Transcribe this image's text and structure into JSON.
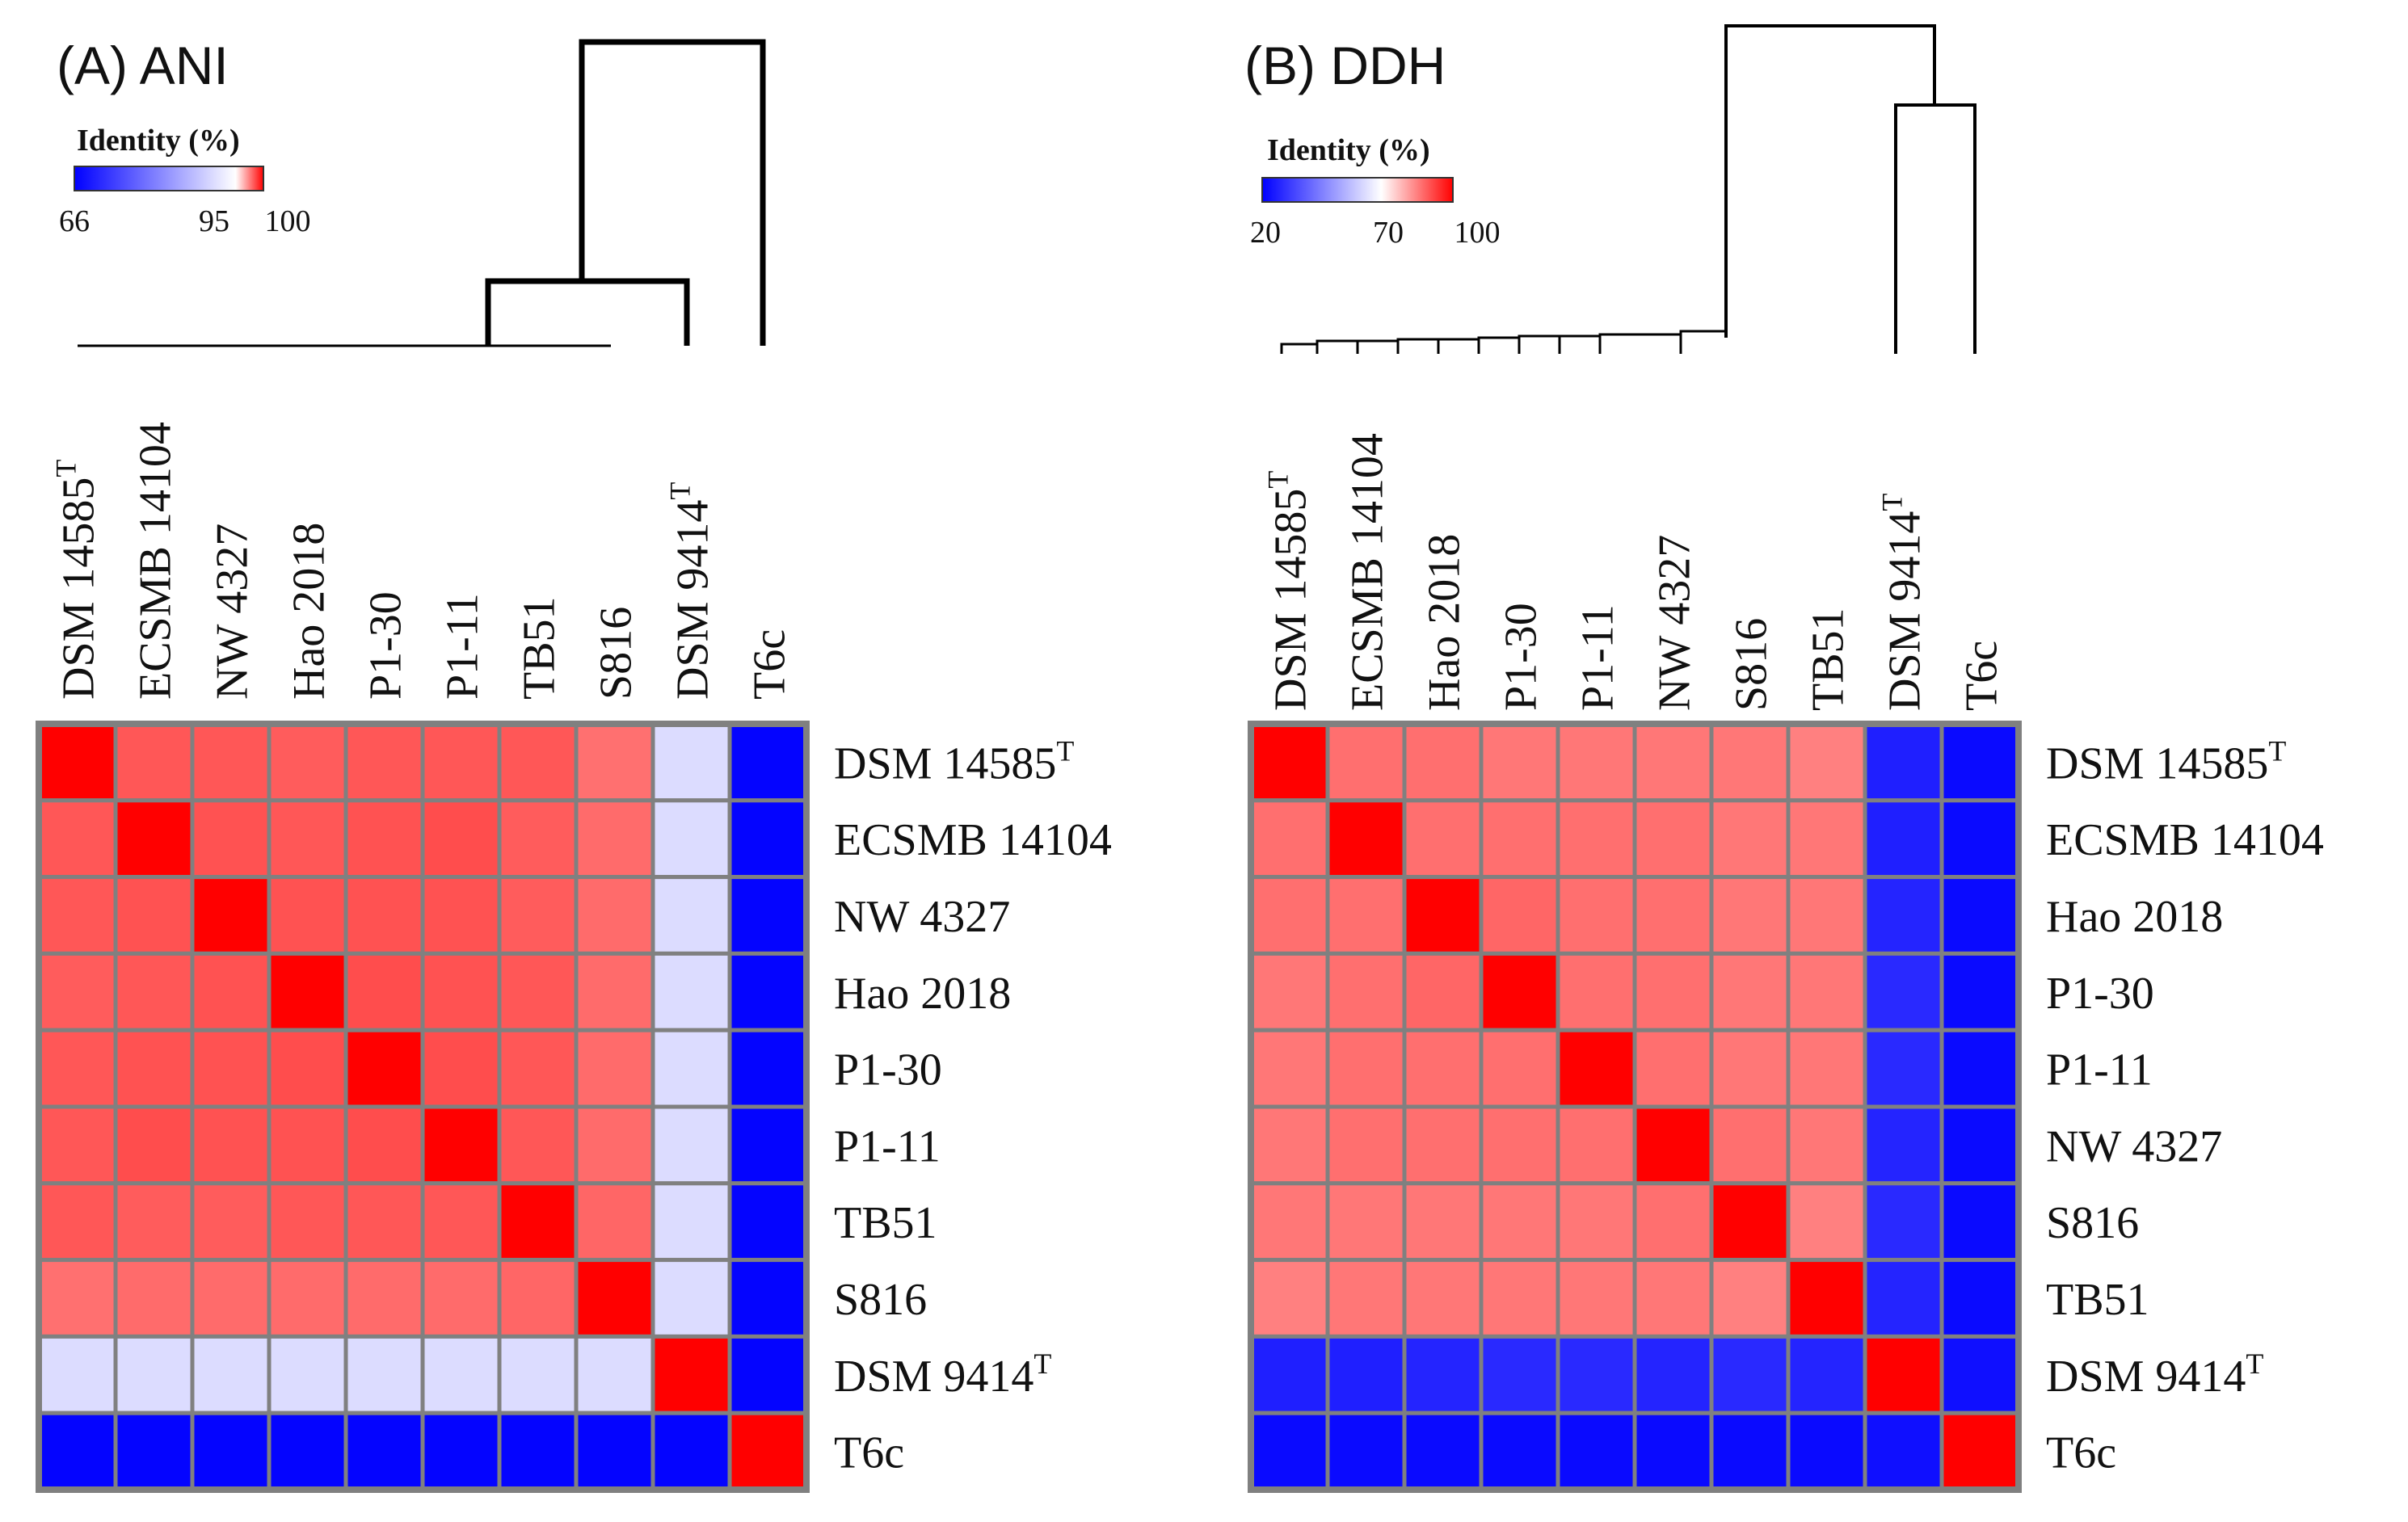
{
  "chart_data": [
    {
      "type": "heatmap",
      "title": "(A) ANI",
      "legend": {
        "title": "Identity (%)",
        "min": 66,
        "mid": 95,
        "max": 100,
        "tick_labels": [
          "66",
          "95",
          "100"
        ],
        "colors": [
          "#0000ff",
          "#ffffff",
          "#ff0000"
        ]
      },
      "columns": [
        {
          "name": "DSM 14585",
          "sup": "T"
        },
        {
          "name": "ECSMB 14104",
          "sup": ""
        },
        {
          "name": "NW 4327",
          "sup": ""
        },
        {
          "name": "Hao 2018",
          "sup": ""
        },
        {
          "name": "P1-30",
          "sup": ""
        },
        {
          "name": "P1-11",
          "sup": ""
        },
        {
          "name": "TB51",
          "sup": ""
        },
        {
          "name": "S816",
          "sup": ""
        },
        {
          "name": "DSM 9414",
          "sup": "T"
        },
        {
          "name": "T6c",
          "sup": ""
        }
      ],
      "rows": [
        {
          "name": "DSM 14585",
          "sup": "T"
        },
        {
          "name": "ECSMB 14104",
          "sup": ""
        },
        {
          "name": "NW 4327",
          "sup": ""
        },
        {
          "name": "Hao 2018",
          "sup": ""
        },
        {
          "name": "P1-30",
          "sup": ""
        },
        {
          "name": "P1-11",
          "sup": ""
        },
        {
          "name": "TB51",
          "sup": ""
        },
        {
          "name": "S816",
          "sup": ""
        },
        {
          "name": "DSM 9414",
          "sup": "T"
        },
        {
          "name": "T6c",
          "sup": ""
        }
      ],
      "values": [
        [
          100,
          98.3,
          98.3,
          98.2,
          98.3,
          98.3,
          98.3,
          97.8,
          91.0,
          66.5
        ],
        [
          98.3,
          100,
          98.4,
          98.3,
          98.4,
          98.5,
          98.2,
          97.9,
          91.0,
          66.5
        ],
        [
          98.3,
          98.4,
          100,
          98.4,
          98.4,
          98.4,
          98.2,
          97.9,
          91.0,
          66.5
        ],
        [
          98.2,
          98.3,
          98.4,
          100,
          98.5,
          98.4,
          98.3,
          97.9,
          91.0,
          66.5
        ],
        [
          98.3,
          98.4,
          98.4,
          98.5,
          100,
          98.5,
          98.3,
          97.9,
          91.0,
          66.5
        ],
        [
          98.3,
          98.5,
          98.4,
          98.4,
          98.5,
          100,
          98.3,
          97.9,
          91.0,
          66.5
        ],
        [
          98.3,
          98.2,
          98.2,
          98.3,
          98.3,
          98.3,
          100,
          98.0,
          91.0,
          66.5
        ],
        [
          97.8,
          97.9,
          97.9,
          97.9,
          97.9,
          97.9,
          98.0,
          100,
          91.0,
          66.5
        ],
        [
          91.0,
          91.0,
          91.0,
          91.0,
          91.0,
          91.0,
          91.0,
          91.0,
          100,
          66.5
        ],
        [
          66.5,
          66.5,
          66.5,
          66.5,
          66.5,
          66.5,
          66.5,
          66.5,
          66.5,
          100
        ]
      ]
    },
    {
      "type": "heatmap",
      "title": "(B) DDH",
      "legend": {
        "title": "Identity (%)",
        "min": 20,
        "mid": 70,
        "max": 100,
        "tick_labels": [
          "20",
          "70",
          "100"
        ],
        "colors": [
          "#0000ff",
          "#ffffff",
          "#ff0000"
        ]
      },
      "columns": [
        {
          "name": "DSM 14585",
          "sup": "T"
        },
        {
          "name": "ECSMB 14104",
          "sup": ""
        },
        {
          "name": "Hao 2018",
          "sup": ""
        },
        {
          "name": "P1-30",
          "sup": ""
        },
        {
          "name": "P1-11",
          "sup": ""
        },
        {
          "name": "NW 4327",
          "sup": ""
        },
        {
          "name": "S816",
          "sup": ""
        },
        {
          "name": "TB51",
          "sup": ""
        },
        {
          "name": "DSM 9414",
          "sup": "T"
        },
        {
          "name": "T6c",
          "sup": ""
        }
      ],
      "rows": [
        {
          "name": "DSM 14585",
          "sup": "T"
        },
        {
          "name": "ECSMB 14104",
          "sup": ""
        },
        {
          "name": "Hao 2018",
          "sup": ""
        },
        {
          "name": "P1-30",
          "sup": ""
        },
        {
          "name": "P1-11",
          "sup": ""
        },
        {
          "name": "NW 4327",
          "sup": ""
        },
        {
          "name": "S816",
          "sup": ""
        },
        {
          "name": "TB51",
          "sup": ""
        },
        {
          "name": "DSM 9414",
          "sup": "T"
        },
        {
          "name": "T6c",
          "sup": ""
        }
      ],
      "values": [
        [
          100,
          87,
          87,
          86,
          86,
          86,
          86,
          85,
          26,
          22
        ],
        [
          87,
          100,
          87,
          87,
          87,
          87,
          86,
          86,
          26,
          22
        ],
        [
          87,
          87,
          100,
          88,
          87,
          87,
          86,
          86,
          27,
          22
        ],
        [
          86,
          87,
          88,
          100,
          87,
          87,
          86,
          86,
          28,
          22
        ],
        [
          86,
          87,
          87,
          87,
          100,
          87,
          86,
          86,
          28,
          22
        ],
        [
          86,
          87,
          87,
          87,
          87,
          100,
          87,
          86,
          27,
          22
        ],
        [
          86,
          86,
          86,
          86,
          86,
          87,
          100,
          85,
          28,
          22
        ],
        [
          85,
          86,
          86,
          86,
          86,
          86,
          85,
          100,
          27,
          22
        ],
        [
          26,
          26,
          27,
          28,
          28,
          27,
          28,
          27,
          100,
          23
        ],
        [
          22,
          22,
          22,
          22,
          22,
          22,
          22,
          22,
          23,
          100
        ]
      ]
    }
  ]
}
